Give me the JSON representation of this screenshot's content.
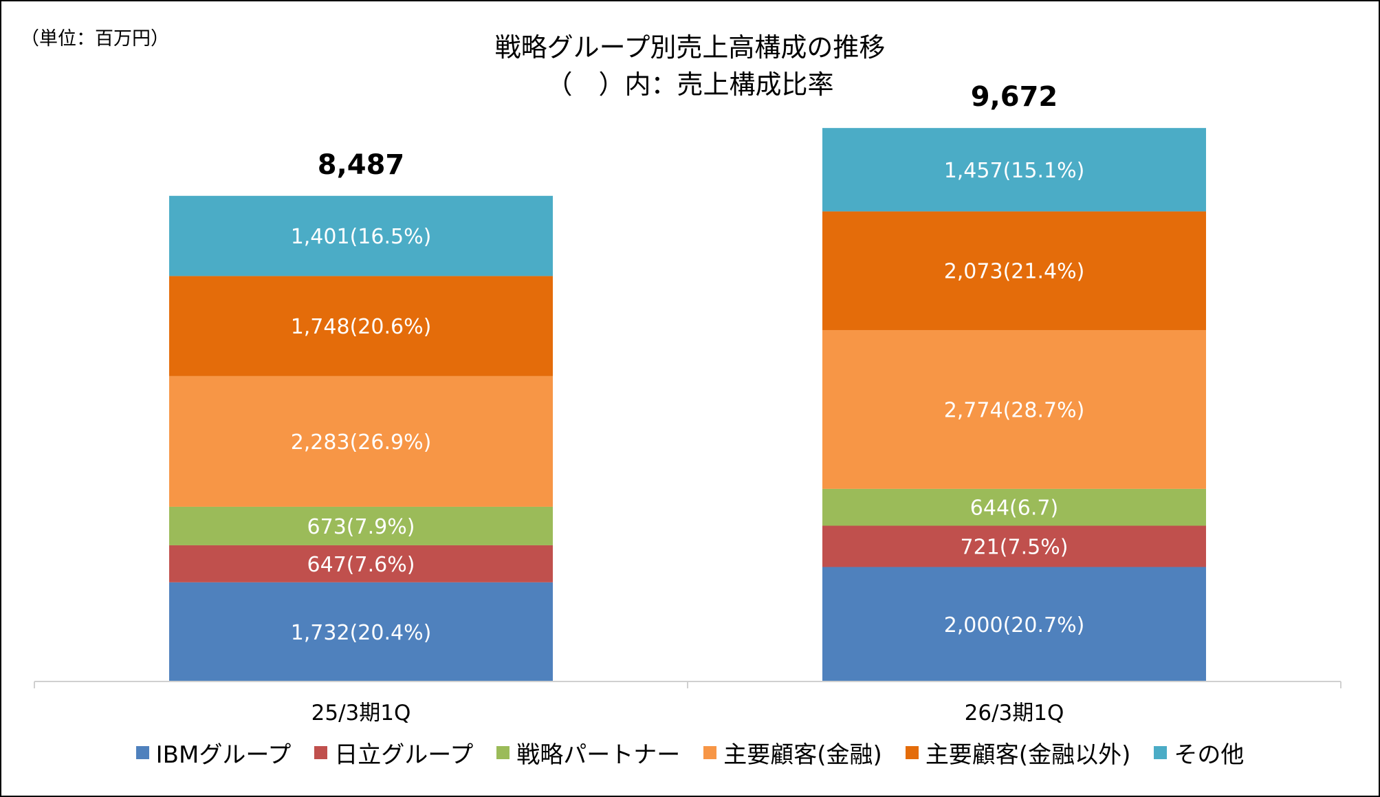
{
  "unit_label": "（単位：百万円）",
  "title_line1": "戦略グループ別売上高構成の推移",
  "title_line2": "（　）内：売上構成比率",
  "chart_data": {
    "type": "bar",
    "stacked": true,
    "categories": [
      "25/3期1Q",
      "26/3期1Q"
    ],
    "totals": [
      8487,
      9672
    ],
    "total_labels": [
      "8,487",
      "9,672"
    ],
    "ylim": [
      0,
      10800
    ],
    "grid": false,
    "legend_position": "bottom",
    "series": [
      {
        "name": "IBMグループ",
        "color": "#4F81BD",
        "values": [
          1732,
          2000
        ],
        "labels": [
          "1,732(20.4%)",
          "2,000(20.7%)"
        ]
      },
      {
        "name": "日立グループ",
        "color": "#C0504D",
        "values": [
          647,
          721
        ],
        "labels": [
          "647(7.6%)",
          "721(7.5%)"
        ]
      },
      {
        "name": "戦略パートナー",
        "color": "#9BBB59",
        "values": [
          673,
          644
        ],
        "labels": [
          "673(7.9%)",
          "644(6.7)"
        ]
      },
      {
        "name": "主要顧客(金融)",
        "color": "#F79646",
        "values": [
          2283,
          2774
        ],
        "labels": [
          "2,283(26.9%)",
          "2,774(28.7%)"
        ]
      },
      {
        "name": "主要顧客(金融以外)",
        "color": "#E46C0A",
        "values": [
          1748,
          2073
        ],
        "labels": [
          "1,748(20.6%)",
          "2,073(21.4%)"
        ]
      },
      {
        "name": "その他",
        "color": "#4BACC6",
        "values": [
          1401,
          1457
        ],
        "labels": [
          "1,401(16.5%)",
          "1,457(15.1%)"
        ]
      }
    ]
  }
}
